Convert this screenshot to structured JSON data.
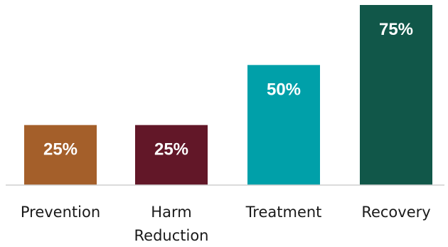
{
  "chart_data": {
    "type": "bar",
    "categories": [
      "Prevention",
      "Harm Reduction",
      "Treatment",
      "Recovery"
    ],
    "category_lines": [
      [
        "Prevention"
      ],
      [
        "Harm",
        "Reduction"
      ],
      [
        "Treatment"
      ],
      [
        "Recovery"
      ]
    ],
    "values": [
      25,
      25,
      50,
      75
    ],
    "data_labels": [
      "25%",
      "25%",
      "50%",
      "75%"
    ],
    "colors": [
      "#a45f2a",
      "#621728",
      "#00a0a9",
      "#115749"
    ],
    "axis_color": "#cfcfcf",
    "ylim": [
      0,
      75
    ],
    "grid": false,
    "legend": "none"
  }
}
